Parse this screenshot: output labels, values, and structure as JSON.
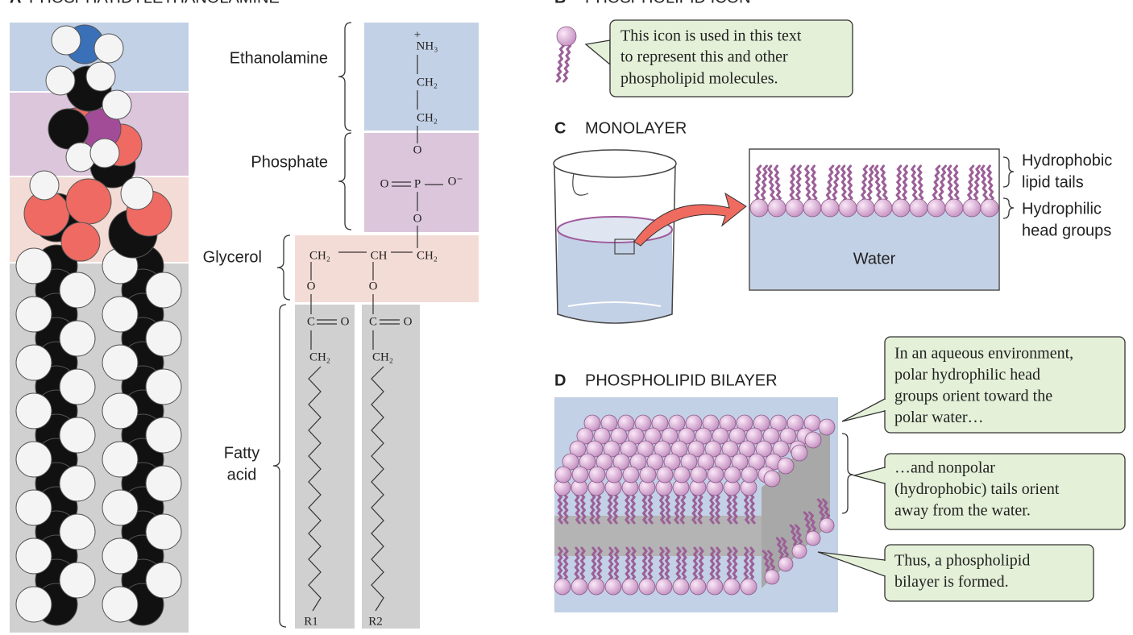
{
  "panel_a": {
    "letter": "A",
    "title": "PHOSPHATIDYLETHANOLAMINE",
    "groups": {
      "ethanolamine": "Ethanolamine",
      "phosphate": "Phosphate",
      "glycerol": "Glycerol",
      "fatty_acid": [
        "Fatty",
        "acid"
      ]
    },
    "atoms": [
      "+",
      "NH₃",
      "CH₂",
      "CH₂",
      "O",
      "O",
      "P",
      "O⁻",
      "O",
      "CH₂",
      "CH",
      "CH₂",
      "O",
      "O",
      "C",
      "O",
      "C",
      "O",
      "CH₂",
      "CH₂",
      "R1",
      "R2"
    ]
  },
  "panel_b": {
    "letter": "B",
    "title": "PHOSPHOLIPID ICON",
    "callout": [
      "This icon is used in this text",
      "to represent this and other",
      "phospholipid molecules."
    ]
  },
  "panel_c": {
    "letter": "C",
    "title": "MONOLAYER",
    "tails": [
      "Hydrophobic",
      "lipid tails"
    ],
    "heads": [
      "Hydrophilic",
      "head groups"
    ],
    "water": "Water"
  },
  "panel_d": {
    "letter": "D",
    "title": "PHOSPHOLIPID BILAYER",
    "callouts": [
      [
        "In an aqueous environment,",
        "polar hydrophilic head",
        "groups orient toward the",
        "polar water…"
      ],
      [
        "…and nonpolar",
        "(hydrophobic) tails orient",
        "away from the water."
      ],
      [
        "Thus, a phospholipid",
        "bilayer is formed."
      ]
    ]
  }
}
